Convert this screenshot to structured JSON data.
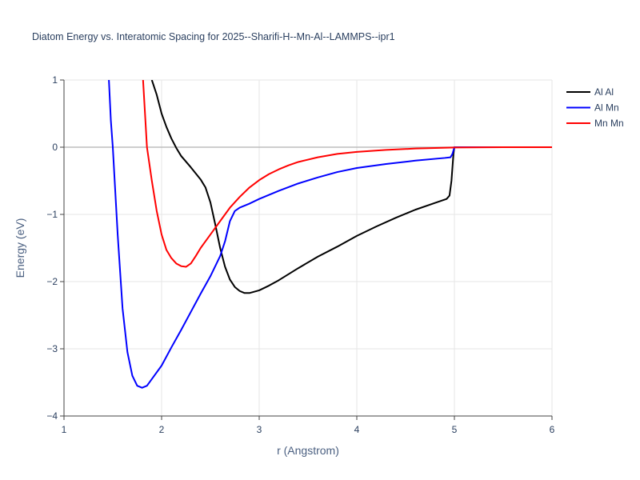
{
  "chart_data": {
    "type": "line",
    "title": "Diatom Energy vs. Interatomic Spacing for 2025--Sharifi-H--Mn-Al--LAMMPS--ipr1",
    "xlabel": "r (Angstrom)",
    "ylabel": "Energy (eV)",
    "xlim": [
      1,
      6
    ],
    "ylim": [
      -4,
      1
    ],
    "xticks": [
      1,
      2,
      3,
      4,
      5,
      6
    ],
    "yticks": [
      -4,
      -3,
      -2,
      -1,
      0,
      1
    ],
    "grid": true,
    "legend_position": "top-right",
    "series": [
      {
        "name": "Al Al",
        "color": "#000000",
        "points": [
          [
            1.9,
            1.0
          ],
          [
            1.95,
            0.78
          ],
          [
            2.0,
            0.5
          ],
          [
            2.05,
            0.3
          ],
          [
            2.1,
            0.13
          ],
          [
            2.15,
            -0.01
          ],
          [
            2.2,
            -0.13
          ],
          [
            2.3,
            -0.3
          ],
          [
            2.4,
            -0.48
          ],
          [
            2.45,
            -0.6
          ],
          [
            2.5,
            -0.82
          ],
          [
            2.55,
            -1.15
          ],
          [
            2.6,
            -1.5
          ],
          [
            2.65,
            -1.78
          ],
          [
            2.7,
            -1.97
          ],
          [
            2.75,
            -2.08
          ],
          [
            2.8,
            -2.14
          ],
          [
            2.85,
            -2.17
          ],
          [
            2.9,
            -2.17
          ],
          [
            3.0,
            -2.13
          ],
          [
            3.1,
            -2.06
          ],
          [
            3.2,
            -1.98
          ],
          [
            3.4,
            -1.8
          ],
          [
            3.6,
            -1.63
          ],
          [
            3.8,
            -1.48
          ],
          [
            4.0,
            -1.32
          ],
          [
            4.2,
            -1.18
          ],
          [
            4.4,
            -1.05
          ],
          [
            4.6,
            -0.93
          ],
          [
            4.8,
            -0.83
          ],
          [
            4.92,
            -0.77
          ],
          [
            4.95,
            -0.72
          ],
          [
            4.97,
            -0.5
          ],
          [
            4.98,
            -0.3
          ],
          [
            4.99,
            -0.1
          ],
          [
            5.0,
            0.0
          ],
          [
            6.0,
            0.0
          ]
        ]
      },
      {
        "name": "Al Mn",
        "color": "#0000ff",
        "points": [
          [
            1.46,
            1.0
          ],
          [
            1.48,
            0.4
          ],
          [
            1.5,
            0.0
          ],
          [
            1.55,
            -1.3
          ],
          [
            1.6,
            -2.4
          ],
          [
            1.65,
            -3.05
          ],
          [
            1.7,
            -3.4
          ],
          [
            1.75,
            -3.55
          ],
          [
            1.8,
            -3.58
          ],
          [
            1.85,
            -3.55
          ],
          [
            1.9,
            -3.45
          ],
          [
            2.0,
            -3.25
          ],
          [
            2.1,
            -2.98
          ],
          [
            2.2,
            -2.72
          ],
          [
            2.3,
            -2.45
          ],
          [
            2.4,
            -2.18
          ],
          [
            2.5,
            -1.92
          ],
          [
            2.6,
            -1.62
          ],
          [
            2.65,
            -1.4
          ],
          [
            2.7,
            -1.1
          ],
          [
            2.75,
            -0.95
          ],
          [
            2.8,
            -0.9
          ],
          [
            2.9,
            -0.84
          ],
          [
            3.0,
            -0.77
          ],
          [
            3.2,
            -0.65
          ],
          [
            3.4,
            -0.54
          ],
          [
            3.6,
            -0.45
          ],
          [
            3.8,
            -0.37
          ],
          [
            4.0,
            -0.31
          ],
          [
            4.3,
            -0.25
          ],
          [
            4.6,
            -0.2
          ],
          [
            4.9,
            -0.16
          ],
          [
            4.96,
            -0.15
          ],
          [
            4.98,
            -0.1
          ],
          [
            5.0,
            0.0
          ],
          [
            6.0,
            0.0
          ]
        ]
      },
      {
        "name": "Mn Mn",
        "color": "#ff0000",
        "points": [
          [
            1.81,
            1.0
          ],
          [
            1.83,
            0.5
          ],
          [
            1.85,
            0.0
          ],
          [
            1.9,
            -0.5
          ],
          [
            1.95,
            -0.95
          ],
          [
            2.0,
            -1.3
          ],
          [
            2.05,
            -1.53
          ],
          [
            2.1,
            -1.65
          ],
          [
            2.15,
            -1.73
          ],
          [
            2.2,
            -1.77
          ],
          [
            2.25,
            -1.78
          ],
          [
            2.3,
            -1.73
          ],
          [
            2.35,
            -1.62
          ],
          [
            2.4,
            -1.5
          ],
          [
            2.5,
            -1.3
          ],
          [
            2.6,
            -1.1
          ],
          [
            2.7,
            -0.9
          ],
          [
            2.8,
            -0.74
          ],
          [
            2.9,
            -0.6
          ],
          [
            3.0,
            -0.49
          ],
          [
            3.1,
            -0.4
          ],
          [
            3.2,
            -0.33
          ],
          [
            3.3,
            -0.27
          ],
          [
            3.4,
            -0.22
          ],
          [
            3.6,
            -0.15
          ],
          [
            3.8,
            -0.1
          ],
          [
            4.0,
            -0.07
          ],
          [
            4.3,
            -0.04
          ],
          [
            4.6,
            -0.02
          ],
          [
            5.0,
            -0.005
          ],
          [
            5.5,
            0.0
          ],
          [
            6.0,
            0.0
          ]
        ]
      }
    ]
  }
}
